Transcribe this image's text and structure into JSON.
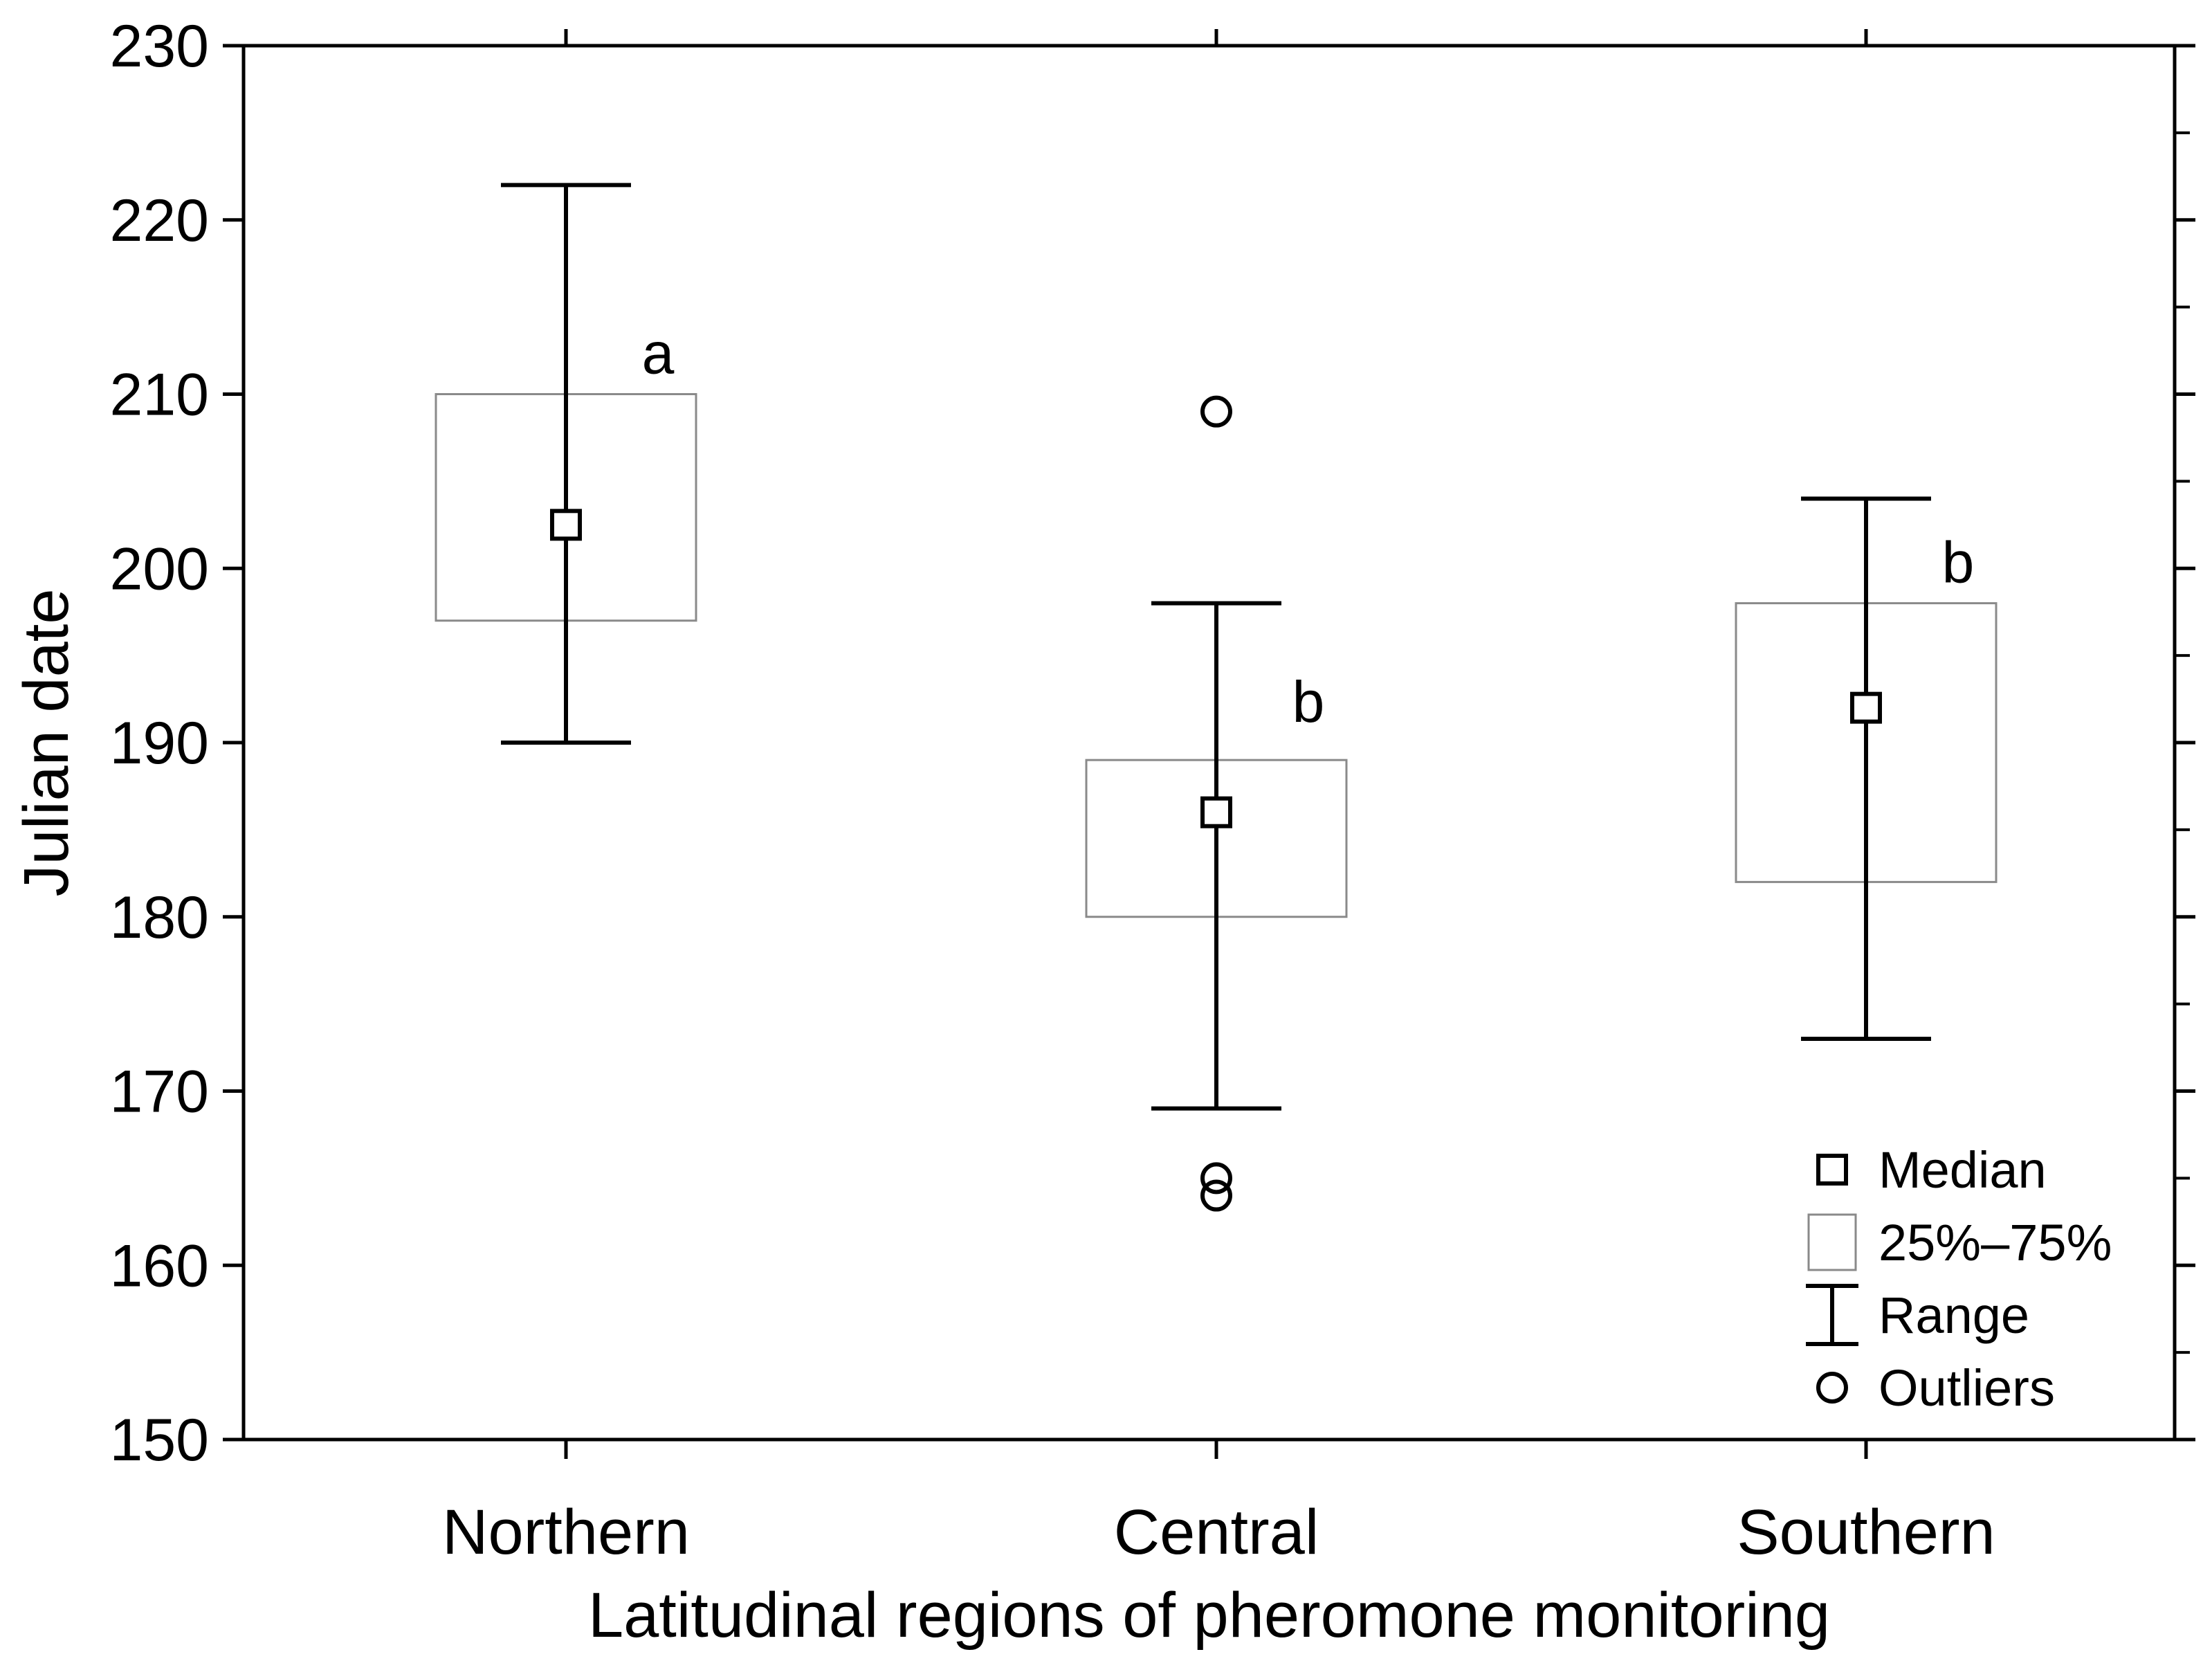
{
  "chart_data": {
    "type": "boxplot",
    "title": "",
    "xlabel": "Latitudinal regions of pheromone monitoring",
    "ylabel": "Julian date",
    "ylim": [
      150,
      230
    ],
    "yticks": [
      150,
      160,
      170,
      180,
      190,
      200,
      210,
      220,
      230
    ],
    "grid": false,
    "legend_position": "bottom-right",
    "legend": [
      {
        "key": "median",
        "label": "Median"
      },
      {
        "key": "iqr",
        "label": "25%–75%"
      },
      {
        "key": "range",
        "label": "Range"
      },
      {
        "key": "outliers",
        "label": "Outliers"
      }
    ],
    "categories": [
      "Northern",
      "Central",
      "Southern"
    ],
    "groups": [
      {
        "category": "Northern",
        "median": 202.5,
        "q1": 197,
        "q3": 210,
        "min": 190,
        "max": 222,
        "outliers": [],
        "significance": "a"
      },
      {
        "category": "Central",
        "median": 186,
        "q1": 180,
        "q3": 189,
        "min": 169,
        "max": 198,
        "outliers": [
          209,
          165,
          164
        ],
        "significance": "b"
      },
      {
        "category": "Southern",
        "median": 192,
        "q1": 182,
        "q3": 198,
        "min": 173,
        "max": 204,
        "outliers": [],
        "significance": "b"
      }
    ]
  }
}
